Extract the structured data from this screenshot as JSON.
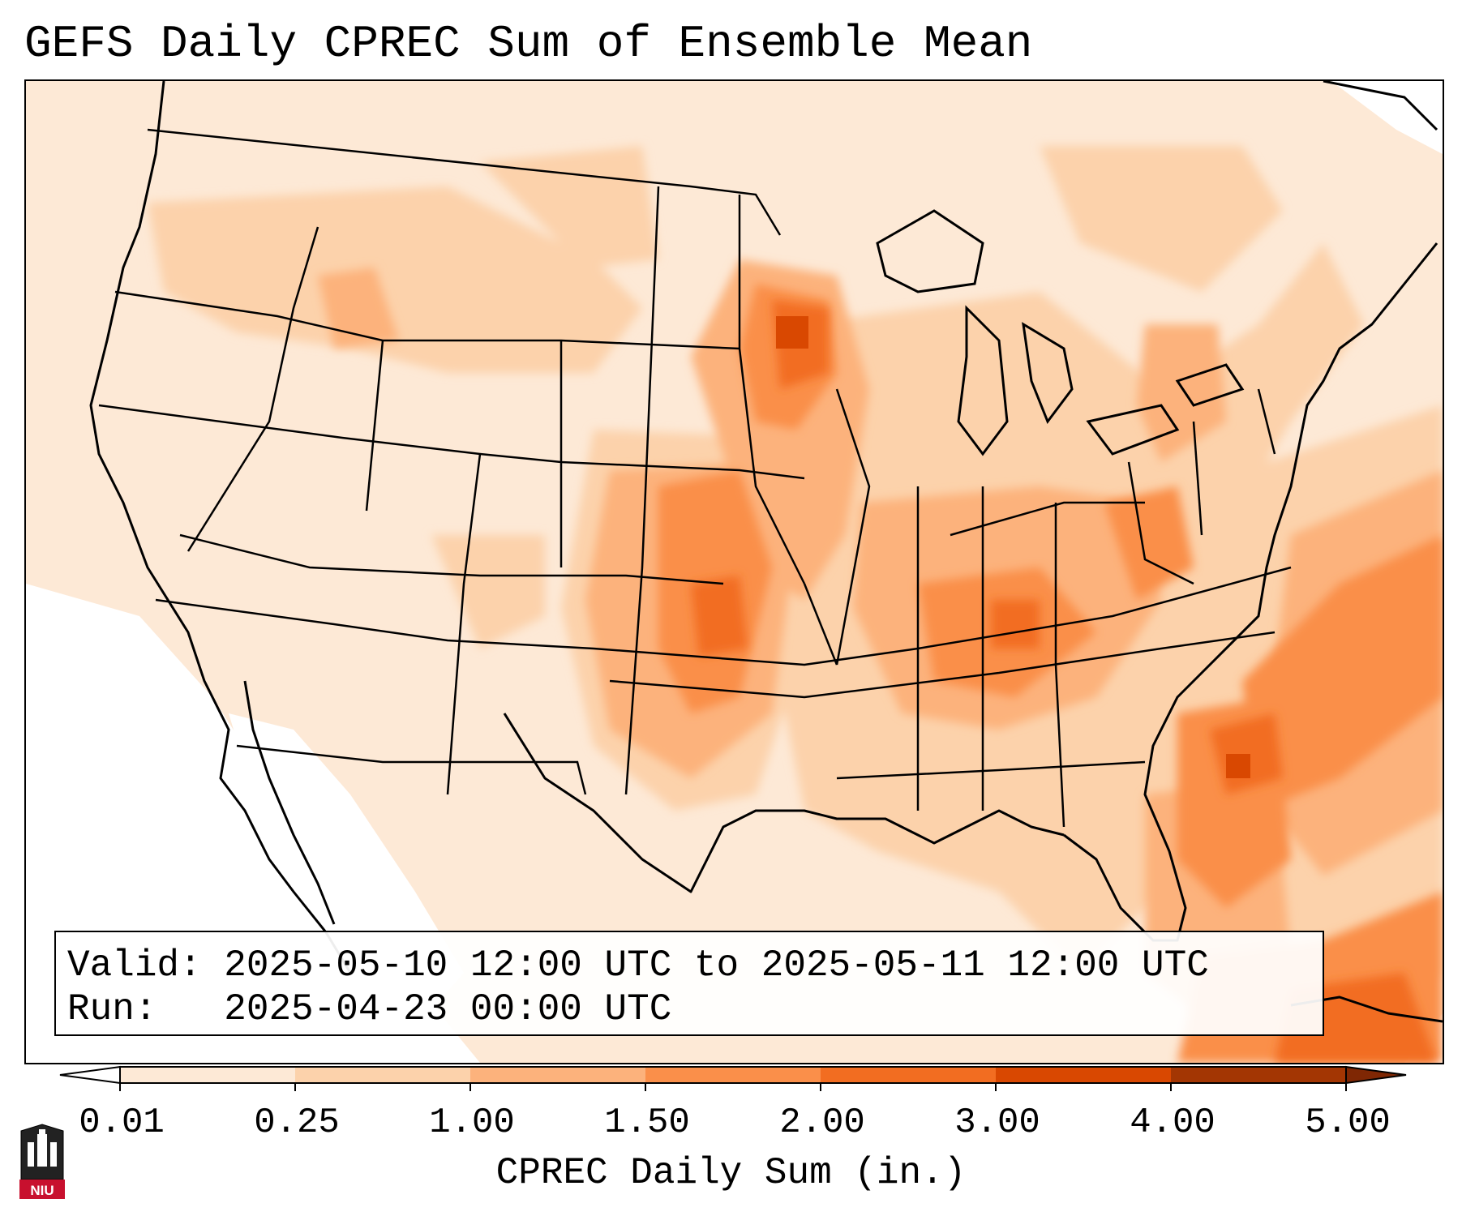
{
  "title": "GEFS Daily CPREC Sum of Ensemble Mean",
  "info": {
    "valid_line": "Valid: 2025-05-10 12:00 UTC to 2025-05-11 12:00 UTC",
    "run_line": "Run:   2025-04-23 00:00 UTC"
  },
  "colorbar": {
    "label": "CPREC Daily Sum (in.)",
    "ticks": [
      "0.01",
      "0.25",
      "1.00",
      "1.50",
      "2.00",
      "3.00",
      "4.00",
      "5.00"
    ],
    "colors": [
      "#fde9d6",
      "#fcd2ab",
      "#fcb27c",
      "#fa8f4a",
      "#f26d21",
      "#d94801",
      "#a33603"
    ],
    "under_color": "#ffffff",
    "over_color": "#7f2704"
  },
  "logo": {
    "text": "NIU",
    "color": "#c8102e"
  },
  "map": {
    "region": "Continental United States",
    "max_areas": [
      "Upper Mississippi Valley",
      "Southeast coast",
      "Western Atlantic"
    ]
  }
}
